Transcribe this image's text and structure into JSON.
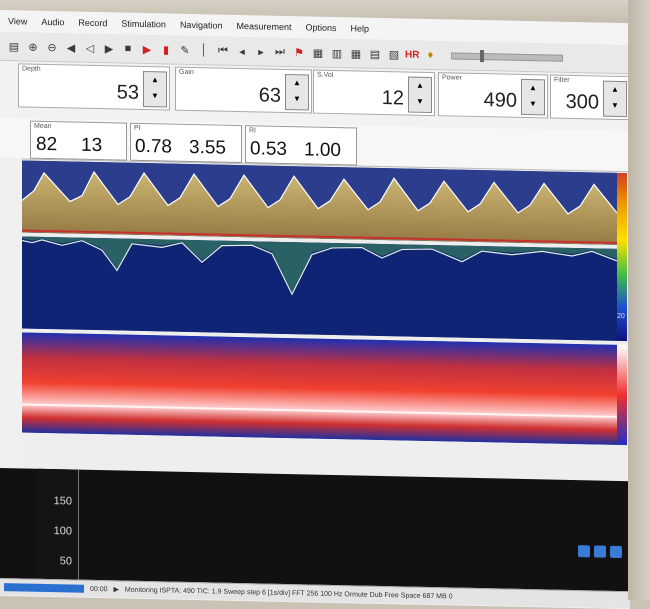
{
  "menu": [
    "View",
    "Audio",
    "Record",
    "Stimulation",
    "Navigation",
    "Measurement",
    "Options",
    "Help"
  ],
  "toolbar": {
    "icons": [
      "copy-icon",
      "zoom-in-icon",
      "zoom-out-icon",
      "speaker-left-icon",
      "speaker-right-icon",
      "play-icon",
      "stop-icon",
      "record-icon",
      "step-icon",
      "pen-icon",
      "pipe-icon",
      "skip-start-icon",
      "prev-icon",
      "next-icon",
      "skip-end-icon",
      "flag-icon",
      "grid1-icon",
      "grid2-icon",
      "grid3-icon",
      "grid4-icon",
      "grid5-icon",
      "hr-icon",
      "bulb-icon"
    ],
    "hr_label": "HR"
  },
  "params": {
    "depth": {
      "label": "Depth",
      "value": "53"
    },
    "gain": {
      "label": "Gain",
      "value": "63"
    },
    "svol": {
      "label": "S.Vol",
      "value": "12"
    },
    "power": {
      "label": "Power",
      "value": "490"
    },
    "filter": {
      "label": "Filter",
      "value": "300"
    }
  },
  "stats": {
    "mean": {
      "label": "Mean",
      "v1": "82",
      "v2": "13"
    },
    "pi": {
      "label": "PI",
      "v1": "0.78",
      "v2": "3.55"
    },
    "ri": {
      "label": "RI",
      "v1": "0.53",
      "v2": "1.00"
    }
  },
  "colorbar_label": "20",
  "lower_axis": [
    "150",
    "100",
    "50"
  ],
  "status": {
    "time": "00:00",
    "text": "Monitoring  ISPTA: 490 TIC: 1.9  Sweep step 6 [1s/div]  FFT 256  100 Hz  Ormute  Dub Free Space 687 MB  0"
  },
  "colors": {
    "spectrum_bg": "#1a2a95",
    "accent": "#2a70d0"
  }
}
